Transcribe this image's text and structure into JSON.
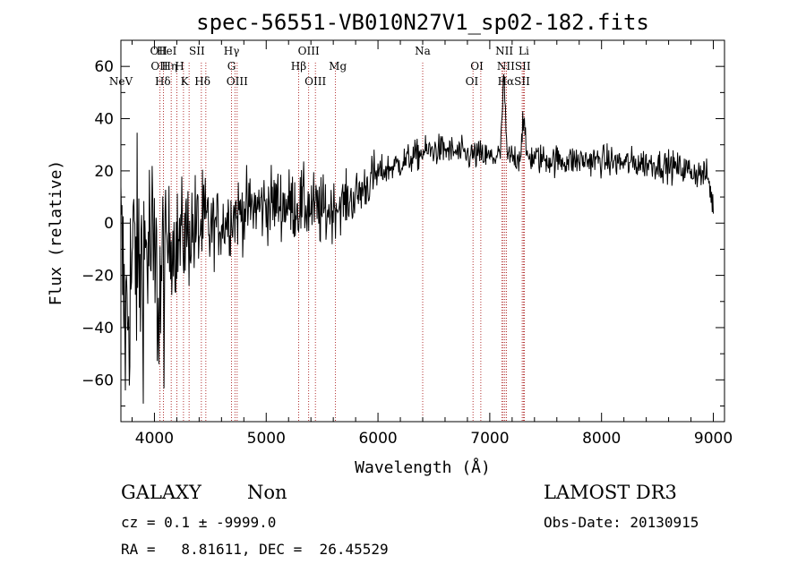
{
  "chart_data": {
    "type": "line",
    "title": "spec-56551-VB010N27V1_sp02-182.fits",
    "xlabel": "Wavelength (Å)",
    "ylabel": "Flux (relative)",
    "xlim": [
      3700,
      9100
    ],
    "ylim": [
      -76,
      70
    ],
    "xticks": [
      4000,
      5000,
      6000,
      7000,
      8000,
      9000
    ],
    "yticks": [
      -60,
      -40,
      -20,
      0,
      20,
      40,
      60
    ],
    "grid": false,
    "spectrum_anchors": [
      [
        3700,
        -8
      ],
      [
        3740,
        -40
      ],
      [
        3780,
        -25
      ],
      [
        3820,
        -10
      ],
      [
        3860,
        -18
      ],
      [
        3900,
        -12
      ],
      [
        3960,
        -8
      ],
      [
        4000,
        -20
      ],
      [
        4050,
        -28
      ],
      [
        4100,
        -12
      ],
      [
        4150,
        -5
      ],
      [
        4200,
        -8
      ],
      [
        4300,
        -3
      ],
      [
        4400,
        -2
      ],
      [
        4500,
        -2
      ],
      [
        4600,
        0
      ],
      [
        4700,
        3
      ],
      [
        4800,
        5
      ],
      [
        4900,
        6
      ],
      [
        5000,
        7
      ],
      [
        5100,
        8
      ],
      [
        5200,
        7
      ],
      [
        5300,
        7
      ],
      [
        5400,
        6
      ],
      [
        5500,
        4
      ],
      [
        5600,
        6
      ],
      [
        5700,
        8
      ],
      [
        5800,
        10
      ],
      [
        5900,
        15
      ],
      [
        6000,
        19
      ],
      [
        6100,
        21
      ],
      [
        6200,
        23
      ],
      [
        6300,
        25
      ],
      [
        6400,
        27
      ],
      [
        6500,
        28
      ],
      [
        6600,
        28
      ],
      [
        6700,
        27
      ],
      [
        6800,
        26
      ],
      [
        6900,
        26
      ],
      [
        7000,
        25
      ],
      [
        7100,
        26
      ],
      [
        7200,
        25
      ],
      [
        7300,
        26
      ],
      [
        7400,
        25
      ],
      [
        7600,
        24
      ],
      [
        7800,
        24
      ],
      [
        8000,
        24
      ],
      [
        8200,
        23
      ],
      [
        8400,
        23
      ],
      [
        8600,
        22
      ],
      [
        8800,
        20
      ],
      [
        8950,
        18
      ],
      [
        9000,
        6
      ]
    ],
    "emission_features": [
      {
        "wavelength": 7125,
        "peak": 56,
        "width": 12
      },
      {
        "wavelength": 7300,
        "peak": 40,
        "width": 12
      }
    ],
    "spectral_lines": [
      {
        "label": "NeV",
        "wavelength": 3700,
        "row": 3
      },
      {
        "label": "OII",
        "wavelength": 4038,
        "row": 1
      },
      {
        "label": "OII",
        "wavelength": 4045,
        "row": 2
      },
      {
        "label": "Hδ",
        "wavelength": 4075,
        "row": 3
      },
      {
        "label": "HeI",
        "wavelength": 4110,
        "row": 1
      },
      {
        "label": "Hη",
        "wavelength": 4135,
        "row": 2
      },
      {
        "label": "H",
        "wavelength": 4225,
        "row": 2
      },
      {
        "label": "K",
        "wavelength": 4270,
        "row": 3
      },
      {
        "label": "SII",
        "wavelength": 4380,
        "row": 1
      },
      {
        "label": "Hδ",
        "wavelength": 4430,
        "row": 3
      },
      {
        "label": "Hγ",
        "wavelength": 4690,
        "row": 1
      },
      {
        "label": "G",
        "wavelength": 4690,
        "row": 2
      },
      {
        "label": "OIII",
        "wavelength": 4740,
        "row": 3
      },
      {
        "label": "OIII",
        "wavelength": 5380,
        "row": 1
      },
      {
        "label": "Hβ",
        "wavelength": 5290,
        "row": 2
      },
      {
        "label": "OIII",
        "wavelength": 5440,
        "row": 3
      },
      {
        "label": "Mg",
        "wavelength": 5640,
        "row": 2
      },
      {
        "label": "Na",
        "wavelength": 6400,
        "row": 1
      },
      {
        "label": "OI",
        "wavelength": 6885,
        "row": 2
      },
      {
        "label": "OI",
        "wavelength": 6840,
        "row": 3
      },
      {
        "label": "NII",
        "wavelength": 7130,
        "row": 1
      },
      {
        "label": "Li",
        "wavelength": 7305,
        "row": 1
      },
      {
        "label": "NIISII",
        "wavelength": 7215,
        "row": 2
      },
      {
        "label": "HαSII",
        "wavelength": 7215,
        "row": 3
      }
    ],
    "line_markers": [
      4050,
      4080,
      4150,
      4200,
      4260,
      4310,
      4420,
      4460,
      4690,
      4720,
      4740,
      5290,
      5380,
      5440,
      5620,
      6400,
      6850,
      6920,
      7110,
      7120,
      7135,
      7150,
      7290,
      7300,
      7310
    ]
  },
  "info": {
    "class_label": "GALAXY",
    "subclass_label": "Non",
    "survey_label": "LAMOST DR3",
    "cz_line": "cz = 0.1 ± -9999.0",
    "obsdate_line": "Obs-Date: 20130915",
    "radec_line": "RA =   8.81611, DEC =  26.45529"
  },
  "colors": {
    "axes": "#000000",
    "spectrum": "#000000",
    "line_marker": "#a00000",
    "background": "#ffffff"
  }
}
